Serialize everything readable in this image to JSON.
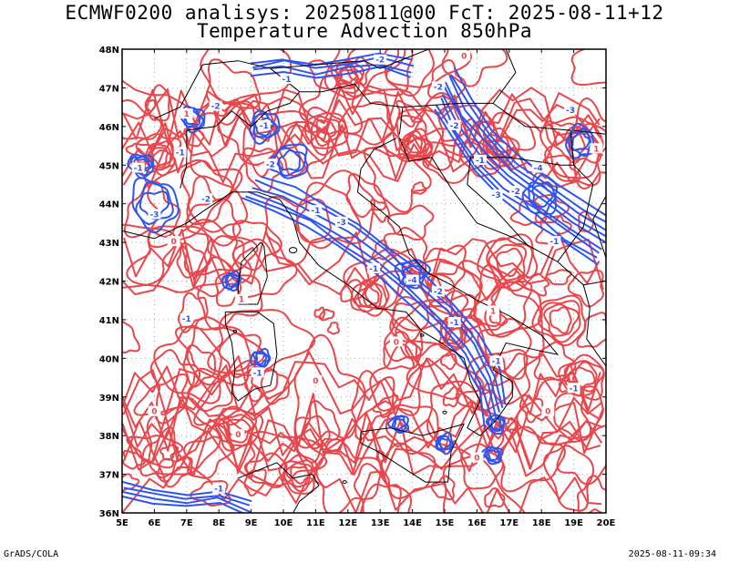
{
  "title_line_1": "ECMWF0200 analisys: 20250811@00 FcT: 2025-08-11+12",
  "title_line_2": "Temperature Advection 850hPa",
  "footer_left": "GrADS/COLA",
  "footer_right": "2025-08-11-09:34",
  "map": {
    "lon_range": [
      5,
      20
    ],
    "lat_range": [
      36,
      48
    ],
    "lon_ticks": [
      "5E",
      "6E",
      "7E",
      "8E",
      "9E",
      "10E",
      "11E",
      "12E",
      "13E",
      "14E",
      "15E",
      "16E",
      "17E",
      "18E",
      "19E",
      "20E"
    ],
    "lat_ticks": [
      "36N",
      "37N",
      "38N",
      "39N",
      "40N",
      "41N",
      "42N",
      "43N",
      "44N",
      "45N",
      "46N",
      "47N",
      "48N"
    ],
    "grid": "dotted",
    "colors": {
      "positive_contour": "#e8474c",
      "negative_contour": "#2f55f0",
      "coastline": "#000000",
      "frame": "#000000",
      "grid": "#aaaaaa"
    },
    "contour_labels": [
      {
        "text": "-1",
        "lon": 5.5,
        "lat": 44.9
      },
      {
        "text": "-2",
        "lon": 7.6,
        "lat": 44.1
      },
      {
        "text": "-3",
        "lon": 6.0,
        "lat": 43.7
      },
      {
        "text": "-1",
        "lon": 6.8,
        "lat": 45.3
      },
      {
        "text": "-2",
        "lon": 9.6,
        "lat": 45.0
      },
      {
        "text": "-1",
        "lon": 9.4,
        "lat": 46.0
      },
      {
        "text": "1",
        "lon": 7.0,
        "lat": 46.3
      },
      {
        "text": "-2",
        "lon": 13.0,
        "lat": 47.7
      },
      {
        "text": "-1",
        "lon": 10.1,
        "lat": 47.2
      },
      {
        "text": "-2",
        "lon": 14.8,
        "lat": 47.0
      },
      {
        "text": "0",
        "lon": 15.6,
        "lat": 47.8
      },
      {
        "text": "-2",
        "lon": 15.3,
        "lat": 46.0
      },
      {
        "text": "-1",
        "lon": 16.1,
        "lat": 45.1
      },
      {
        "text": "-3",
        "lon": 16.6,
        "lat": 44.2
      },
      {
        "text": "-2",
        "lon": 17.2,
        "lat": 44.3
      },
      {
        "text": "-3",
        "lon": 18.9,
        "lat": 46.4
      },
      {
        "text": "-4",
        "lon": 17.9,
        "lat": 44.9
      },
      {
        "text": "-1",
        "lon": 18.4,
        "lat": 43.0
      },
      {
        "text": "1",
        "lon": 19.7,
        "lat": 45.4
      },
      {
        "text": "-1",
        "lon": 11.0,
        "lat": 43.8
      },
      {
        "text": "-3",
        "lon": 11.8,
        "lat": 43.5
      },
      {
        "text": "-4",
        "lon": 14.0,
        "lat": 42.0
      },
      {
        "text": "-1",
        "lon": 12.8,
        "lat": 42.3
      },
      {
        "text": "-2",
        "lon": 14.8,
        "lat": 41.7
      },
      {
        "text": "-1",
        "lon": 15.3,
        "lat": 40.9
      },
      {
        "text": "-1",
        "lon": 16.6,
        "lat": 39.9
      },
      {
        "text": "-1",
        "lon": 7.0,
        "lat": 41.0
      },
      {
        "text": "-1",
        "lon": 9.2,
        "lat": 39.6
      },
      {
        "text": "-1",
        "lon": 8.0,
        "lat": 36.6
      },
      {
        "text": "0",
        "lon": 6.0,
        "lat": 38.6
      },
      {
        "text": "0",
        "lon": 8.6,
        "lat": 38.0
      },
      {
        "text": "0",
        "lon": 11.0,
        "lat": 39.4
      },
      {
        "text": "0",
        "lon": 13.5,
        "lat": 40.4
      },
      {
        "text": "0",
        "lon": 16.0,
        "lat": 37.4
      },
      {
        "text": "0",
        "lon": 18.2,
        "lat": 38.6
      },
      {
        "text": "1",
        "lon": 16.5,
        "lat": 41.2
      },
      {
        "text": "-1",
        "lon": 19.0,
        "lat": 39.2
      },
      {
        "text": "-2",
        "lon": 7.9,
        "lat": 46.5
      },
      {
        "text": "1",
        "lon": 8.7,
        "lat": 41.5
      },
      {
        "text": "0",
        "lon": 6.6,
        "lat": 43.0
      }
    ]
  }
}
